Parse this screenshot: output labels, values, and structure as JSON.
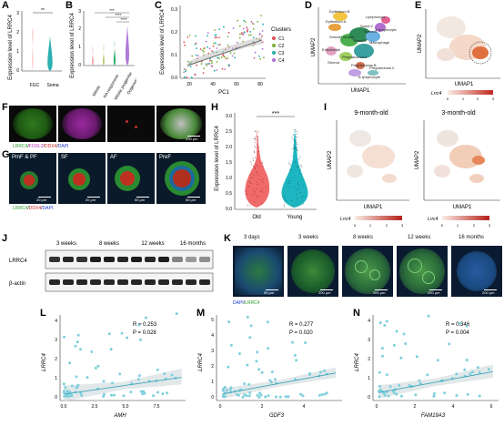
{
  "labels": {
    "A": "A",
    "B": "B",
    "C": "C",
    "D": "D",
    "E": "E",
    "F": "F",
    "G": "G",
    "H": "H",
    "I": "I",
    "J": "J",
    "K": "K",
    "L": "L",
    "M": "M",
    "N": "N"
  },
  "panelA": {
    "ylabel": "Expression level of LRRC4",
    "sig": "**",
    "yticks": [
      "0",
      "1",
      "2",
      "3"
    ],
    "categories": [
      "FGC",
      "Soma"
    ],
    "colors": [
      "#f08080",
      "#2ab0b0"
    ]
  },
  "panelB": {
    "ylabel": "Expression level of LRRC4",
    "sig": [
      "***",
      "****",
      "****"
    ],
    "yticks": [
      "0",
      "1",
      "2",
      "3"
    ],
    "categories": [
      "Mitotic",
      "RA responsive",
      "Mitotic progenitor",
      "Oogenesis"
    ],
    "colors": [
      "#f08080",
      "#a0b030",
      "#30b070",
      "#b07ad8"
    ]
  },
  "panelC": {
    "ylabel": "Expression level of LRRC4",
    "xlabel": "PC1",
    "xticks": [
      "20",
      "40",
      "60",
      "80"
    ],
    "yticks": [
      "0.0",
      "0.1",
      "0.2",
      "0.3"
    ],
    "legend_title": "Clusters",
    "clusters": [
      {
        "name": "C1",
        "color": "#e05050"
      },
      {
        "name": "C2",
        "color": "#7ab030"
      },
      {
        "name": "C3",
        "color": "#20b0b0"
      },
      {
        "name": "C4",
        "color": "#b070d0"
      }
    ]
  },
  "panelD": {
    "xlabel": "UMAP1",
    "ylabel": "UMAP2",
    "clusters": [
      "Epithelium B",
      "Epithelium A",
      "Lymphocyte",
      "Soma C",
      "Soma B",
      "Smooth muscle",
      "Soma A",
      "T lymphocyte",
      "Macrophage",
      "Endothelial",
      "Pregranulosa A",
      "B lymphocyte",
      "Pregranulosa C",
      "Pregranulosa B",
      "Stroma"
    ]
  },
  "panelE": {
    "xlabel": "UMAP1",
    "ylabel": "UMAP2",
    "legend_title": "Lrrc4",
    "scale": [
      "0",
      "1",
      "2",
      "3"
    ]
  },
  "panelF": {
    "caption_parts": [
      "LRRC4",
      "/",
      "FOXL2",
      "/",
      "DDX4",
      "/",
      "DAPI"
    ],
    "caption_colors": [
      "#2a9a2a",
      "#000000",
      "#c020c0",
      "#000000",
      "#d02020",
      "#000000"
    ],
    "scale": "200 μm"
  },
  "panelG": {
    "stages": [
      "PmF & PF",
      "SF",
      "AF",
      "PreF"
    ],
    "scales": [
      "20 μm",
      "20 μm",
      "50 μm",
      "50 μm"
    ],
    "caption_parts": [
      "LRRC4",
      "/",
      "DDX4",
      "/",
      "DAPI"
    ],
    "caption_colors": [
      "#2a9a2a",
      "#000000",
      "#d02020",
      "#000000"
    ]
  },
  "panelH": {
    "ylabel": "Expression level of LRRC4",
    "sig": "***",
    "yticks": [
      "0.0",
      "0.5",
      "1.0",
      "1.5",
      "2.0",
      "2.5",
      "3.0"
    ],
    "categories": [
      "Old",
      "Young"
    ],
    "colors": [
      "#f06a6a",
      "#1cb5c0"
    ]
  },
  "panelI": {
    "titles": [
      "9-month-old",
      "3-month-old"
    ],
    "xlabel": "UMAP1",
    "ylabel": "UMAP2",
    "legend_title": "Lrrc4",
    "scale": [
      "0",
      "1",
      "2",
      "3"
    ]
  },
  "panelJ": {
    "ages": [
      "3 weeks",
      "8 weeks",
      "12 weeks",
      "16 months"
    ],
    "rows": [
      "LRRC4",
      "β-actin"
    ]
  },
  "panelK": {
    "ages": [
      "3 days",
      "3 weeks",
      "8 weeks",
      "12 weeks",
      "16 months"
    ],
    "scales": [
      "50 μm",
      "200 μm",
      "200 μm",
      "200 μm",
      "200 μm"
    ],
    "caption_parts": [
      "DAPI",
      "/",
      "LRRC4"
    ],
    "caption_colors": [
      "#1a3ad0",
      "#000000",
      "#2a9a2a"
    ]
  },
  "panelL": {
    "ylabel": "LRRC4",
    "xlabel": "AMH",
    "R": "R = 0.253",
    "P": "P = 0.028",
    "xticks": [
      "0.0",
      "2.5",
      "5.0",
      "7.5"
    ],
    "yticks": [
      "0",
      "1",
      "2",
      "3",
      "4"
    ],
    "chart_data": {
      "type": "scatter",
      "x_range": [
        -0.5,
        9
      ],
      "y_range": [
        -0.2,
        4.3
      ],
      "fit_slope": 0.1,
      "fit_intercept": 0.15
    }
  },
  "panelM": {
    "ylabel": "LRRC4",
    "xlabel": "GDF3",
    "R": "R = 0.277",
    "P": "P = 0.020",
    "xticks": [
      "0",
      "2",
      "4"
    ],
    "yticks": [
      "0",
      "1",
      "2",
      "3",
      "4",
      "5"
    ],
    "chart_data": {
      "type": "scatter",
      "x_range": [
        -0.2,
        5.8
      ],
      "y_range": [
        -0.2,
        5.3
      ],
      "fit_slope": 0.25,
      "fit_intercept": 0.2
    }
  },
  "panelN": {
    "ylabel": "LRRC4",
    "xlabel": "FAM19A3",
    "R": "R = 0.346",
    "P": "P = 0.004",
    "xticks": [
      "0",
      "2",
      "4",
      "6"
    ],
    "yticks": [
      "0",
      "1",
      "2",
      "3",
      "4"
    ],
    "chart_data": {
      "type": "scatter",
      "x_range": [
        -0.2,
        6.5
      ],
      "y_range": [
        -0.2,
        4.3
      ],
      "fit_slope": 0.18,
      "fit_intercept": 0.2
    }
  }
}
